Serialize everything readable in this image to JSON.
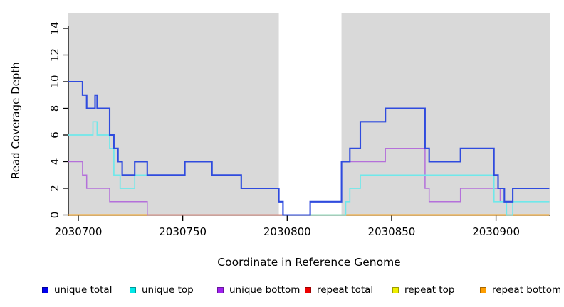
{
  "chart_data": {
    "type": "line",
    "step": true,
    "title": "",
    "xlabel": "Coordinate in Reference Genome",
    "ylabel": "Read Coverage Depth",
    "xlim": [
      2030695.2,
      2030925.5
    ],
    "ylim": [
      0,
      15.2
    ],
    "x_ticks": [
      2030700,
      2030750,
      2030800,
      2030850,
      2030900
    ],
    "y_ticks": [
      0,
      2,
      4,
      6,
      8,
      10,
      12,
      14
    ],
    "grid": false,
    "plot_bg": "#d9d9d9",
    "gap_region": {
      "from": 2030796,
      "to": 2030826,
      "color": "#ffffff"
    },
    "series": [
      {
        "name": "repeat total",
        "line_color": "#e02020",
        "width": 1.4,
        "points": [
          [
            2030695.2,
            0
          ]
        ]
      },
      {
        "name": "repeat top",
        "line_color": "#f0f000",
        "width": 1.4,
        "points": [
          [
            2030695.2,
            0
          ]
        ]
      },
      {
        "name": "repeat bottom",
        "line_color": "#ffa11e",
        "width": 1.7,
        "points": [
          [
            2030695.2,
            0
          ]
        ]
      },
      {
        "name": "unique bottom",
        "line_color": "#b470da",
        "width": 1.5,
        "points": [
          [
            2030695.2,
            4
          ],
          [
            2030702,
            3
          ],
          [
            2030704,
            2
          ],
          [
            2030715,
            1
          ],
          [
            2030733,
            0
          ],
          [
            2030811,
            1
          ],
          [
            2030826,
            4
          ],
          [
            2030847,
            5
          ],
          [
            2030866,
            2
          ],
          [
            2030868,
            1
          ],
          [
            2030883,
            2
          ],
          [
            2030902,
            1
          ]
        ]
      },
      {
        "name": "unique top",
        "line_color": "#6fe8ea",
        "width": 1.7,
        "points": [
          [
            2030695.2,
            6
          ],
          [
            2030707,
            7
          ],
          [
            2030709,
            6
          ],
          [
            2030715,
            5
          ],
          [
            2030717,
            3
          ],
          [
            2030720,
            2
          ],
          [
            2030727,
            3
          ],
          [
            2030751,
            4
          ],
          [
            2030764,
            3
          ],
          [
            2030778,
            2
          ],
          [
            2030796,
            1
          ],
          [
            2030798,
            0
          ],
          [
            2030828,
            1
          ],
          [
            2030830,
            2
          ],
          [
            2030835,
            3
          ],
          [
            2030899,
            1
          ],
          [
            2030905,
            0
          ],
          [
            2030908,
            1
          ]
        ]
      },
      {
        "name": "unique total",
        "line_color": "#2f4bde",
        "width": 2.1,
        "points": [
          [
            2030695.2,
            10
          ],
          [
            2030702,
            9
          ],
          [
            2030704,
            8
          ],
          [
            2030708,
            9
          ],
          [
            2030709,
            8
          ],
          [
            2030715,
            6
          ],
          [
            2030717,
            5
          ],
          [
            2030719,
            4
          ],
          [
            2030721,
            3
          ],
          [
            2030727,
            4
          ],
          [
            2030733,
            3
          ],
          [
            2030751,
            4
          ],
          [
            2030764,
            3
          ],
          [
            2030778,
            2
          ],
          [
            2030796,
            1
          ],
          [
            2030798,
            0
          ],
          [
            2030811,
            1
          ],
          [
            2030826,
            4
          ],
          [
            2030830,
            5
          ],
          [
            2030835,
            7
          ],
          [
            2030847,
            8
          ],
          [
            2030866,
            5
          ],
          [
            2030868,
            4
          ],
          [
            2030883,
            5
          ],
          [
            2030899,
            3
          ],
          [
            2030901,
            2
          ],
          [
            2030904,
            1
          ],
          [
            2030908,
            2
          ]
        ]
      }
    ],
    "legend": [
      {
        "label": "unique total",
        "color": "#0000ee"
      },
      {
        "label": "unique top",
        "color": "#00e9e9"
      },
      {
        "label": "unique bottom",
        "color": "#a020f0"
      },
      {
        "label": "repeat total",
        "color": "#ee0000"
      },
      {
        "label": "repeat top",
        "color": "#f0f000"
      },
      {
        "label": "repeat bottom",
        "color": "#ff9e00"
      }
    ],
    "legend_position": "bottom"
  },
  "layout_text": {
    "x_axis_title": "Coordinate in Reference Genome",
    "y_axis_title": "Read Coverage Depth"
  }
}
